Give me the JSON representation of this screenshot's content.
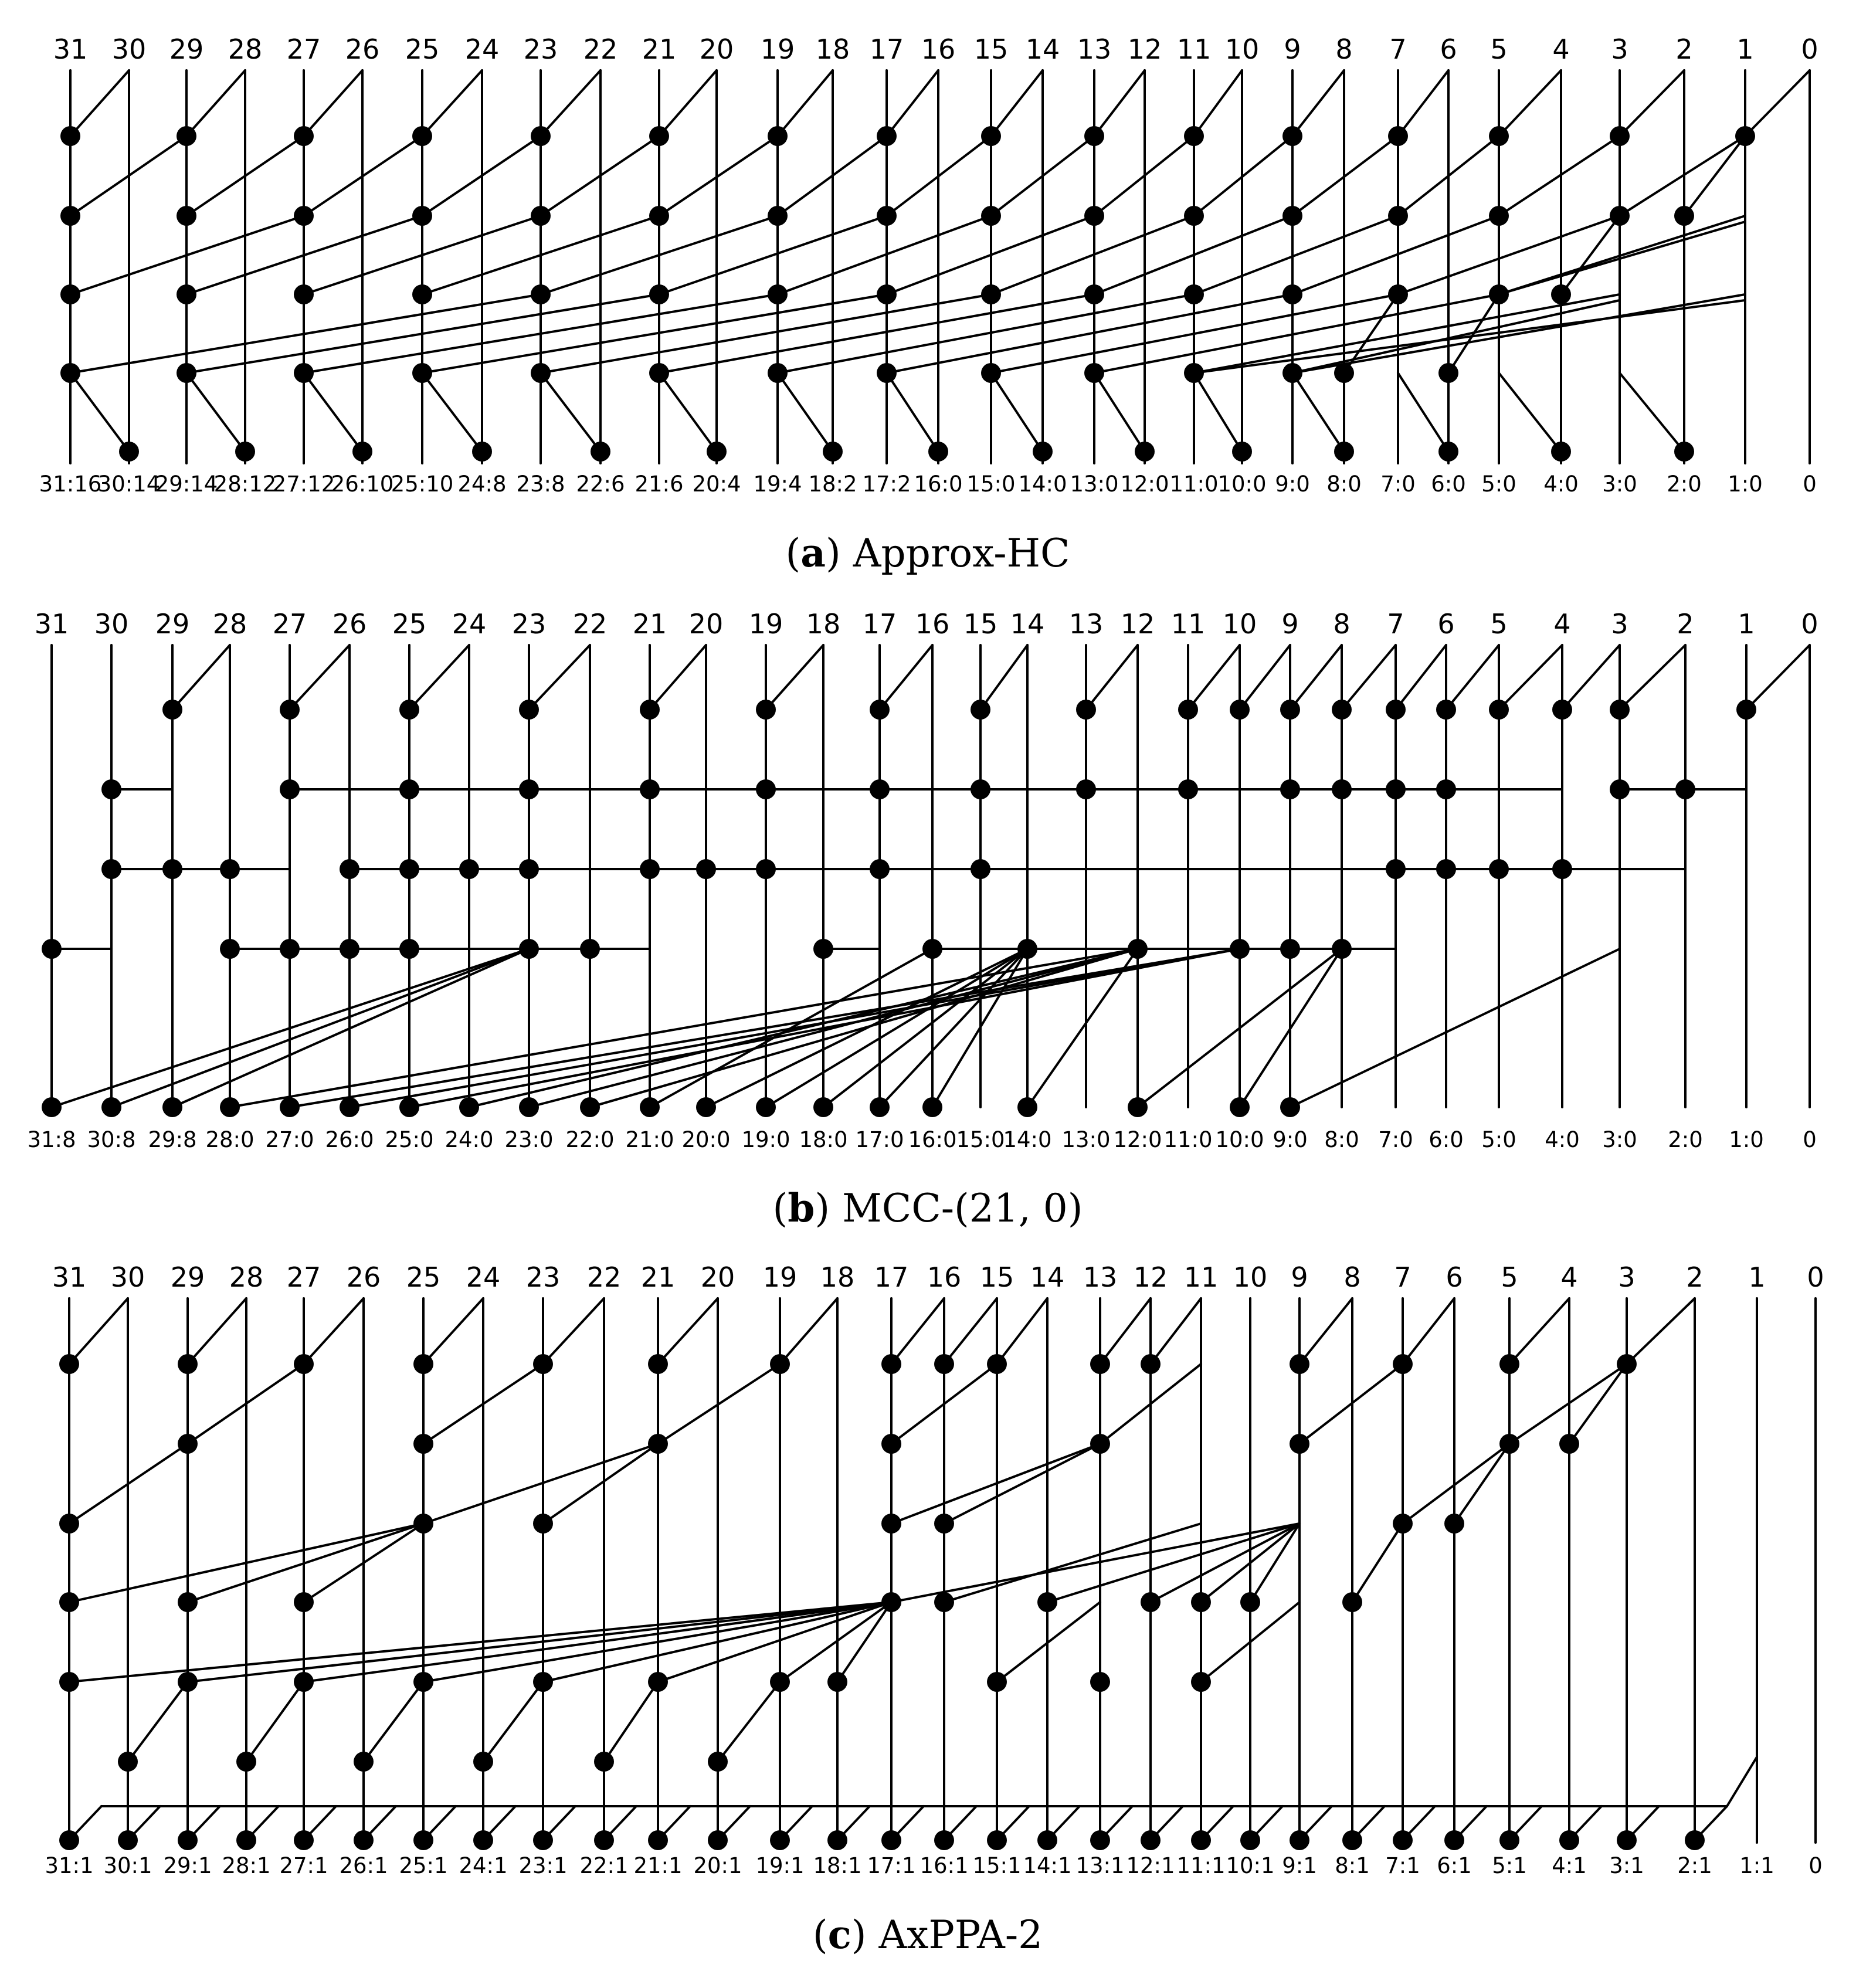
{
  "diagrams": [
    {
      "key": "a",
      "caption_letter": "a",
      "caption_title": "Approx-HC",
      "inputs": [
        "31",
        "30",
        "29",
        "28",
        "27",
        "26",
        "25",
        "24",
        "23",
        "22",
        "21",
        "20",
        "19",
        "18",
        "17",
        "16",
        "15",
        "14",
        "13",
        "12",
        "11",
        "10",
        "9",
        "8",
        "7",
        "6",
        "5",
        "4",
        "3",
        "2",
        "1",
        "0"
      ],
      "outputs": [
        "31:16",
        "30:14",
        "29:14",
        "28:12",
        "27:12",
        "26:10",
        "25:10",
        "24:8",
        "23:8",
        "22:6",
        "21:6",
        "20:4",
        "19:4",
        "18:2",
        "17:2",
        "16:0",
        "15:0",
        "14:0",
        "13:0",
        "12:0",
        "11:0",
        "10:0",
        "9:0",
        "8:0",
        "7:0",
        "6:0",
        "5:0",
        "4:0",
        "3:0",
        "2:0",
        "1:0",
        "0"
      ]
    },
    {
      "key": "b",
      "caption_letter": "b",
      "caption_title": "MCC-(21, 0)",
      "inputs": [
        "31",
        "30",
        "29",
        "28",
        "27",
        "26",
        "25",
        "24",
        "23",
        "22",
        "21",
        "20",
        "19",
        "18",
        "17",
        "16",
        "15",
        "14",
        "13",
        "12",
        "11",
        "10",
        "9",
        "8",
        "7",
        "6",
        "5",
        "4",
        "3",
        "2",
        "1",
        "0"
      ],
      "outputs": [
        "31:8",
        "30:8",
        "29:8",
        "28:0",
        "27:0",
        "26:0",
        "25:0",
        "24:0",
        "23:0",
        "22:0",
        "21:0",
        "20:0",
        "19:0",
        "18:0",
        "17:0",
        "16:0",
        "15:0",
        "14:0",
        "13:0",
        "12:0",
        "11:0",
        "10:0",
        "9:0",
        "8:0",
        "7:0",
        "6:0",
        "5:0",
        "4:0",
        "3:0",
        "2:0",
        "1:0",
        "0"
      ]
    },
    {
      "key": "c",
      "caption_letter": "c",
      "caption_title": "AxPPA-2",
      "inputs": [
        "31",
        "30",
        "29",
        "28",
        "27",
        "26",
        "25",
        "24",
        "23",
        "22",
        "21",
        "20",
        "19",
        "18",
        "17",
        "16",
        "15",
        "14",
        "13",
        "12",
        "11",
        "10",
        "9",
        "8",
        "7",
        "6",
        "5",
        "4",
        "3",
        "2",
        "1",
        "0"
      ],
      "outputs": [
        "31:1",
        "30:1",
        "29:1",
        "28:1",
        "27:1",
        "26:1",
        "25:1",
        "24:1",
        "23:1",
        "22:1",
        "21:1",
        "20:1",
        "19:1",
        "18:1",
        "17:1",
        "16:1",
        "15:1",
        "14:1",
        "13:1",
        "12:1",
        "11:1",
        "10:1",
        "9:1",
        "8:1",
        "7:1",
        "6:1",
        "5:1",
        "4:1",
        "3:1",
        "2:1",
        "1:1",
        "0"
      ]
    }
  ]
}
